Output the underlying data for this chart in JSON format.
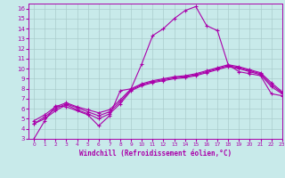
{
  "bg_color": "#c8eaea",
  "grid_color": "#aacccc",
  "line_color": "#aa00aa",
  "xlim": [
    -0.5,
    23
  ],
  "ylim": [
    3,
    16.5
  ],
  "yticks": [
    3,
    4,
    5,
    6,
    7,
    8,
    9,
    10,
    11,
    12,
    13,
    14,
    15,
    16
  ],
  "xticks": [
    0,
    1,
    2,
    3,
    4,
    5,
    6,
    7,
    8,
    9,
    10,
    11,
    12,
    13,
    14,
    15,
    16,
    17,
    18,
    19,
    20,
    21,
    22,
    23
  ],
  "xlabel": "Windchill (Refroidissement éolien,°C)",
  "curve1_x": [
    0,
    1,
    2,
    3,
    4,
    5,
    6,
    7,
    8,
    9,
    10,
    11,
    12,
    13,
    14,
    15,
    16,
    17,
    18,
    19,
    20,
    21,
    22,
    23
  ],
  "curve1_y": [
    3.0,
    4.8,
    6.3,
    6.2,
    5.8,
    5.4,
    4.3,
    5.3,
    7.8,
    8.0,
    10.5,
    13.3,
    14.0,
    15.0,
    15.8,
    16.2,
    14.3,
    13.8,
    10.4,
    9.7,
    9.5,
    9.3,
    7.5,
    7.3
  ],
  "curve2_x": [
    0,
    1,
    2,
    3,
    4,
    5,
    6,
    7,
    8,
    9,
    10,
    11,
    12,
    13,
    14,
    15,
    16,
    17,
    18,
    19,
    20,
    21,
    22,
    23
  ],
  "curve2_y": [
    4.5,
    5.0,
    5.8,
    6.4,
    5.9,
    5.5,
    5.0,
    5.5,
    6.5,
    7.8,
    8.3,
    8.6,
    8.8,
    9.0,
    9.1,
    9.3,
    9.6,
    9.9,
    10.2,
    10.0,
    9.7,
    9.4,
    8.2,
    7.5
  ],
  "curve3_x": [
    0,
    1,
    2,
    3,
    4,
    5,
    6,
    7,
    8,
    9,
    10,
    11,
    12,
    13,
    14,
    15,
    16,
    17,
    18,
    19,
    20,
    21,
    22,
    23
  ],
  "curve3_y": [
    4.5,
    5.2,
    6.0,
    6.5,
    6.1,
    5.7,
    5.3,
    5.7,
    6.7,
    7.9,
    8.4,
    8.7,
    8.9,
    9.1,
    9.2,
    9.4,
    9.7,
    10.0,
    10.3,
    10.1,
    9.8,
    9.5,
    8.4,
    7.6
  ],
  "curve4_x": [
    0,
    1,
    2,
    3,
    4,
    5,
    6,
    7,
    8,
    9,
    10,
    11,
    12,
    13,
    14,
    15,
    16,
    17,
    18,
    19,
    20,
    21,
    22,
    23
  ],
  "curve4_y": [
    4.8,
    5.4,
    6.2,
    6.6,
    6.2,
    5.9,
    5.6,
    5.9,
    6.9,
    8.0,
    8.5,
    8.8,
    9.0,
    9.2,
    9.3,
    9.5,
    9.8,
    10.1,
    10.4,
    10.2,
    9.9,
    9.6,
    8.6,
    7.7
  ]
}
